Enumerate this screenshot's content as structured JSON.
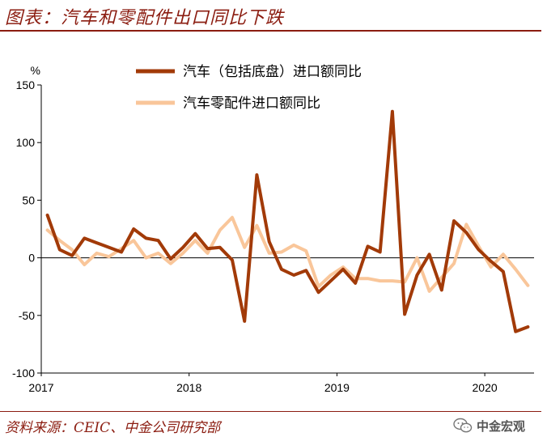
{
  "title": "图表：汽车和零配件出口同比下跌",
  "source": "资料来源：CEIC、中金公司研究部",
  "watermark": "中金宏观",
  "chart_data": {
    "type": "line",
    "title": "图表：汽车和零配件出口同比下跌",
    "ylabel": "%",
    "xlabel": "",
    "ylim": [
      -100,
      150
    ],
    "yticks": [
      150,
      100,
      50,
      0,
      -50,
      -100
    ],
    "xlim": [
      0,
      40
    ],
    "xticks": [
      {
        "label": "2017",
        "at": 0
      },
      {
        "label": "2018",
        "at": 12
      },
      {
        "label": "2019",
        "at": 24
      },
      {
        "label": "2020",
        "at": 36
      }
    ],
    "grid": false,
    "legend_position": "top",
    "series": [
      {
        "name": "汽车（包括底盘）进口额同比",
        "color": "#a23a08",
        "values": [
          37,
          7,
          2,
          17,
          13,
          9,
          5,
          25,
          17,
          15,
          -1,
          9,
          21,
          8,
          9,
          -2,
          -55,
          72,
          14,
          -10,
          -15,
          -11,
          -30,
          -20,
          -10,
          -22,
          10,
          5,
          127,
          -49,
          -15,
          3,
          -28,
          32,
          22,
          7,
          -3,
          -12,
          -64,
          -60
        ]
      },
      {
        "name": "汽车零配件进口额同比",
        "color": "#f9c69a",
        "values": [
          24,
          15,
          7,
          -6,
          4,
          1,
          8,
          15,
          0,
          4,
          -5,
          4,
          15,
          4,
          24,
          35,
          9,
          28,
          4,
          5,
          11,
          6,
          -25,
          -15,
          -8,
          -18,
          -18,
          -20,
          -20,
          -21,
          0,
          -29,
          -17,
          -5,
          29,
          10,
          -8,
          3,
          -10,
          -24
        ]
      }
    ]
  }
}
